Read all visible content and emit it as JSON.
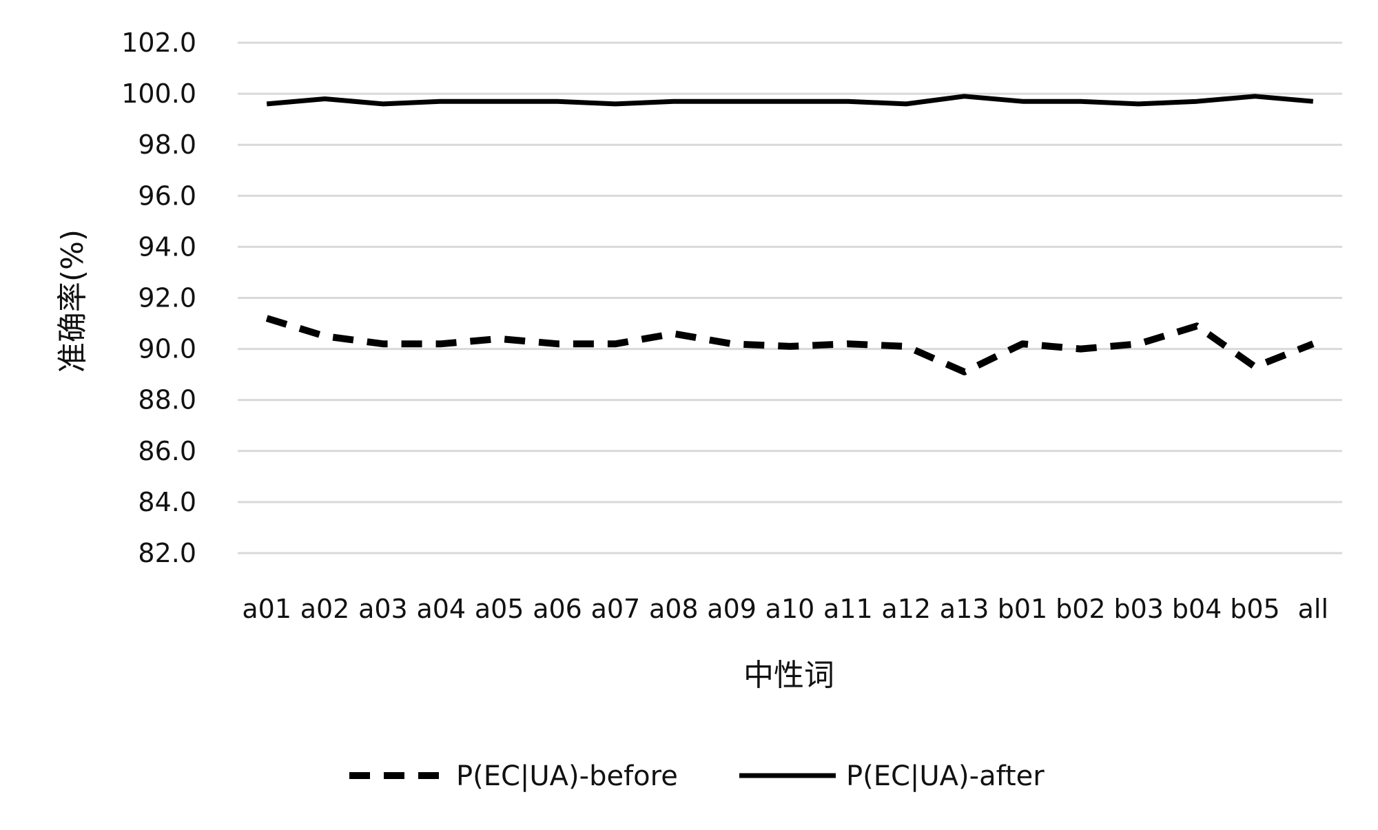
{
  "chart_data": {
    "type": "line",
    "categories": [
      "a01",
      "a02",
      "a03",
      "a04",
      "a05",
      "a06",
      "a07",
      "a08",
      "a09",
      "a10",
      "a11",
      "a12",
      "a13",
      "b01",
      "b02",
      "b03",
      "b04",
      "b05",
      "all"
    ],
    "series": [
      {
        "name": "P(EC|UA)-before",
        "style": "dashed",
        "color": "#000000",
        "values": [
          91.2,
          90.5,
          90.2,
          90.2,
          90.4,
          90.2,
          90.2,
          90.6,
          90.2,
          90.1,
          90.2,
          90.1,
          89.1,
          90.2,
          90.0,
          90.2,
          90.9,
          89.3,
          90.2
        ]
      },
      {
        "name": "P(EC|UA)-after",
        "style": "solid",
        "color": "#000000",
        "values": [
          99.6,
          99.8,
          99.6,
          99.7,
          99.7,
          99.7,
          99.6,
          99.7,
          99.7,
          99.7,
          99.7,
          99.6,
          99.9,
          99.7,
          99.7,
          99.6,
          99.7,
          99.9,
          99.7
        ]
      }
    ],
    "yticks": [
      "82.0",
      "84.0",
      "86.0",
      "88.0",
      "90.0",
      "92.0",
      "94.0",
      "96.0",
      "98.0",
      "100.0",
      "102.0"
    ],
    "ylim": [
      82,
      102
    ],
    "xlabel": "中性词",
    "ylabel": "准确率(%)",
    "grid": true,
    "legend": "bottom"
  }
}
